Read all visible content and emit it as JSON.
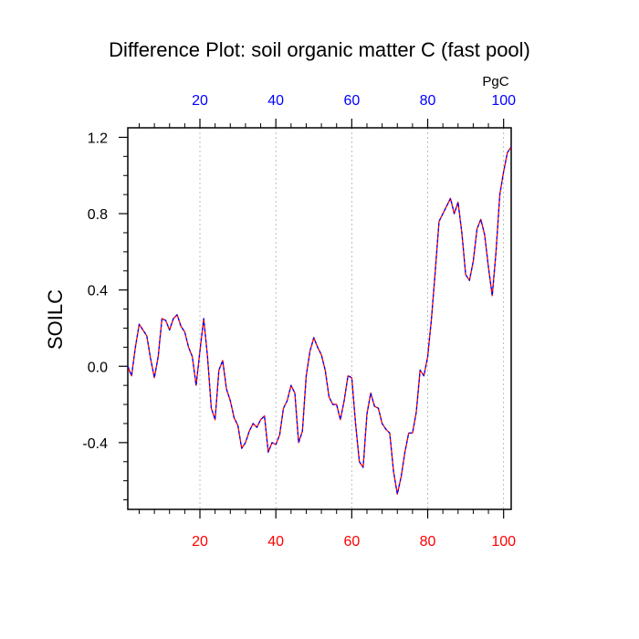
{
  "chart_data": {
    "type": "line",
    "title": "Difference Plot: soil organic matter C (fast pool)",
    "ylabel": "SOILC",
    "top_axis_unit": "PgC",
    "xlim": [
      1,
      102
    ],
    "ylim": [
      -0.75,
      1.25
    ],
    "x_ticks": [
      20,
      40,
      60,
      80,
      100
    ],
    "y_ticks": [
      -0.4,
      0.0,
      0.4,
      0.8,
      1.2
    ],
    "y_tick_labels": [
      "-0.4",
      "0.0",
      "0.4",
      "0.8",
      "1.2"
    ],
    "grid": "vertical dotted at x ticks",
    "colors": {
      "bottom_tick_labels": "#ff0000",
      "top_tick_labels": "#0000ff",
      "line_main": "#ff0000",
      "line_overlay": "#0000ff",
      "grid": "#aaaaaa",
      "axes": "#000000"
    },
    "series": [
      {
        "x": [
          1,
          2,
          3,
          4,
          5,
          6,
          7,
          8,
          9,
          10,
          11,
          12,
          13,
          14,
          15,
          16,
          17,
          18,
          19,
          20,
          21,
          22,
          23,
          24,
          25,
          26,
          27,
          28,
          29,
          30,
          31,
          32,
          33,
          34,
          35,
          36,
          37,
          38,
          39,
          40,
          41,
          42,
          43,
          44,
          45,
          46,
          47,
          48,
          49,
          50,
          51,
          52,
          53,
          54,
          55,
          56,
          57,
          58,
          59,
          60,
          61,
          62,
          63,
          64,
          65,
          66,
          67,
          68,
          69,
          70,
          71,
          72,
          73,
          74,
          75,
          76,
          77,
          78,
          79,
          80,
          81,
          82,
          83,
          84,
          85,
          86,
          87,
          88,
          89,
          90,
          91,
          92,
          93,
          94,
          95,
          96,
          97,
          98,
          99,
          100,
          101,
          102
        ],
        "values": [
          0.0,
          -0.05,
          0.1,
          0.22,
          0.19,
          0.16,
          0.04,
          -0.06,
          0.05,
          0.25,
          0.24,
          0.19,
          0.25,
          0.27,
          0.21,
          0.18,
          0.1,
          0.05,
          -0.1,
          0.08,
          0.25,
          0.05,
          -0.22,
          -0.28,
          -0.02,
          0.03,
          -0.12,
          -0.18,
          -0.27,
          -0.31,
          -0.43,
          -0.4,
          -0.34,
          -0.3,
          -0.32,
          -0.28,
          -0.26,
          -0.45,
          -0.4,
          -0.41,
          -0.36,
          -0.22,
          -0.18,
          -0.1,
          -0.14,
          -0.4,
          -0.34,
          -0.05,
          0.08,
          0.15,
          0.1,
          0.06,
          -0.02,
          -0.16,
          -0.2,
          -0.2,
          -0.28,
          -0.18,
          -0.05,
          -0.06,
          -0.3,
          -0.5,
          -0.53,
          -0.25,
          -0.14,
          -0.21,
          -0.22,
          -0.3,
          -0.33,
          -0.35,
          -0.55,
          -0.67,
          -0.58,
          -0.45,
          -0.35,
          -0.35,
          -0.24,
          -0.02,
          -0.05,
          0.05,
          0.25,
          0.5,
          0.76,
          0.8,
          0.84,
          0.88,
          0.8,
          0.86,
          0.7,
          0.48,
          0.45,
          0.55,
          0.72,
          0.77,
          0.69,
          0.52,
          0.37,
          0.6,
          0.9,
          1.02,
          1.12,
          1.15
        ]
      }
    ]
  }
}
